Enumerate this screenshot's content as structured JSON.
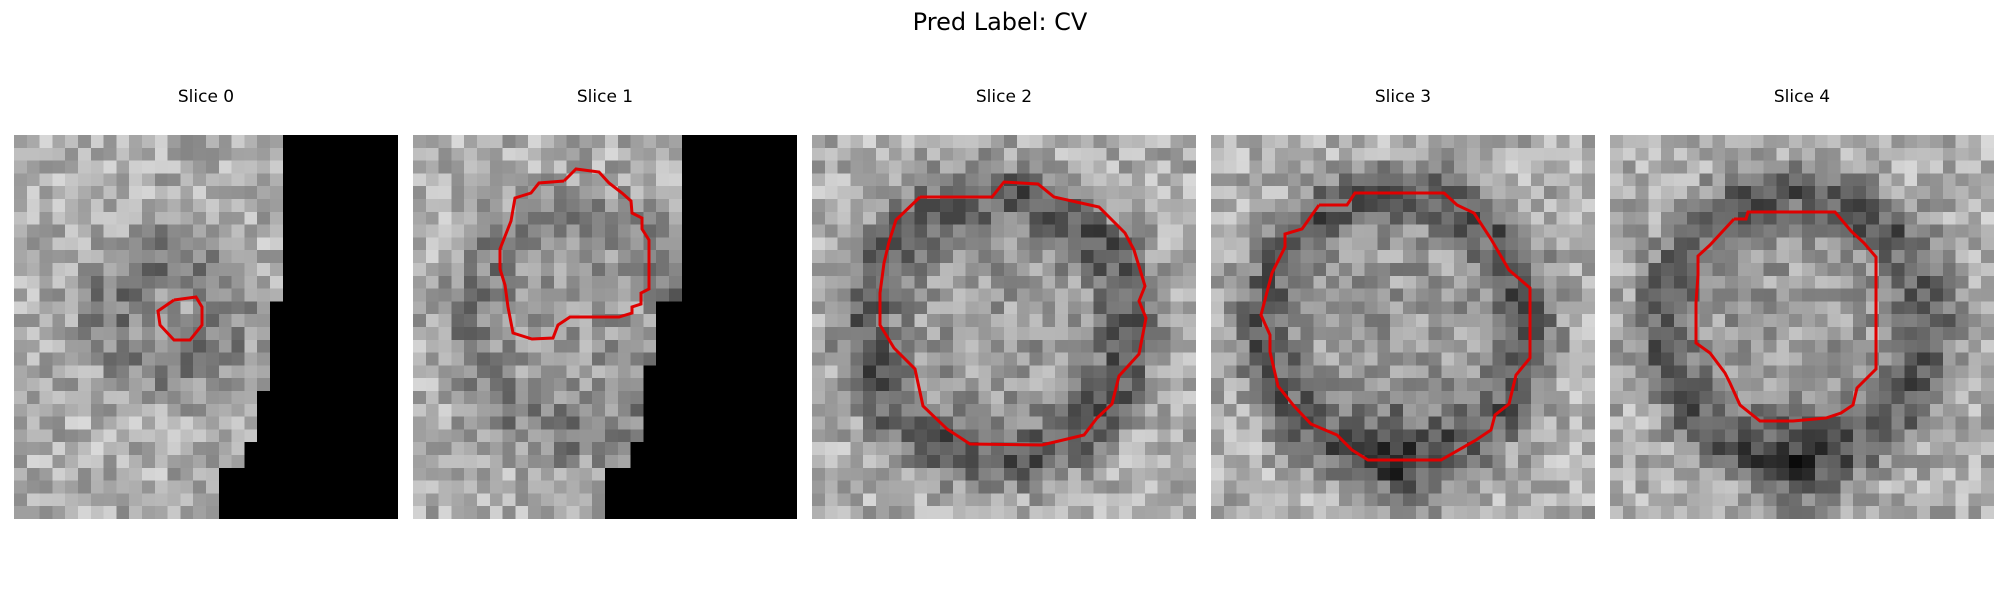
{
  "figure": {
    "title": "Pred Label: CV",
    "contour_color": "#e00000",
    "panels": [
      {
        "title": "Slice 0",
        "mask_kind": "black-right-staircase",
        "contour": "small-blob"
      },
      {
        "title": "Slice 1",
        "mask_kind": "black-right-staircase",
        "contour": "large-irregular"
      },
      {
        "title": "Slice 2",
        "mask_kind": "none",
        "contour": "octagon"
      },
      {
        "title": "Slice 3",
        "mask_kind": "none",
        "contour": "octagon"
      },
      {
        "title": "Slice 4",
        "mask_kind": "none",
        "contour": "octagon"
      }
    ]
  }
}
